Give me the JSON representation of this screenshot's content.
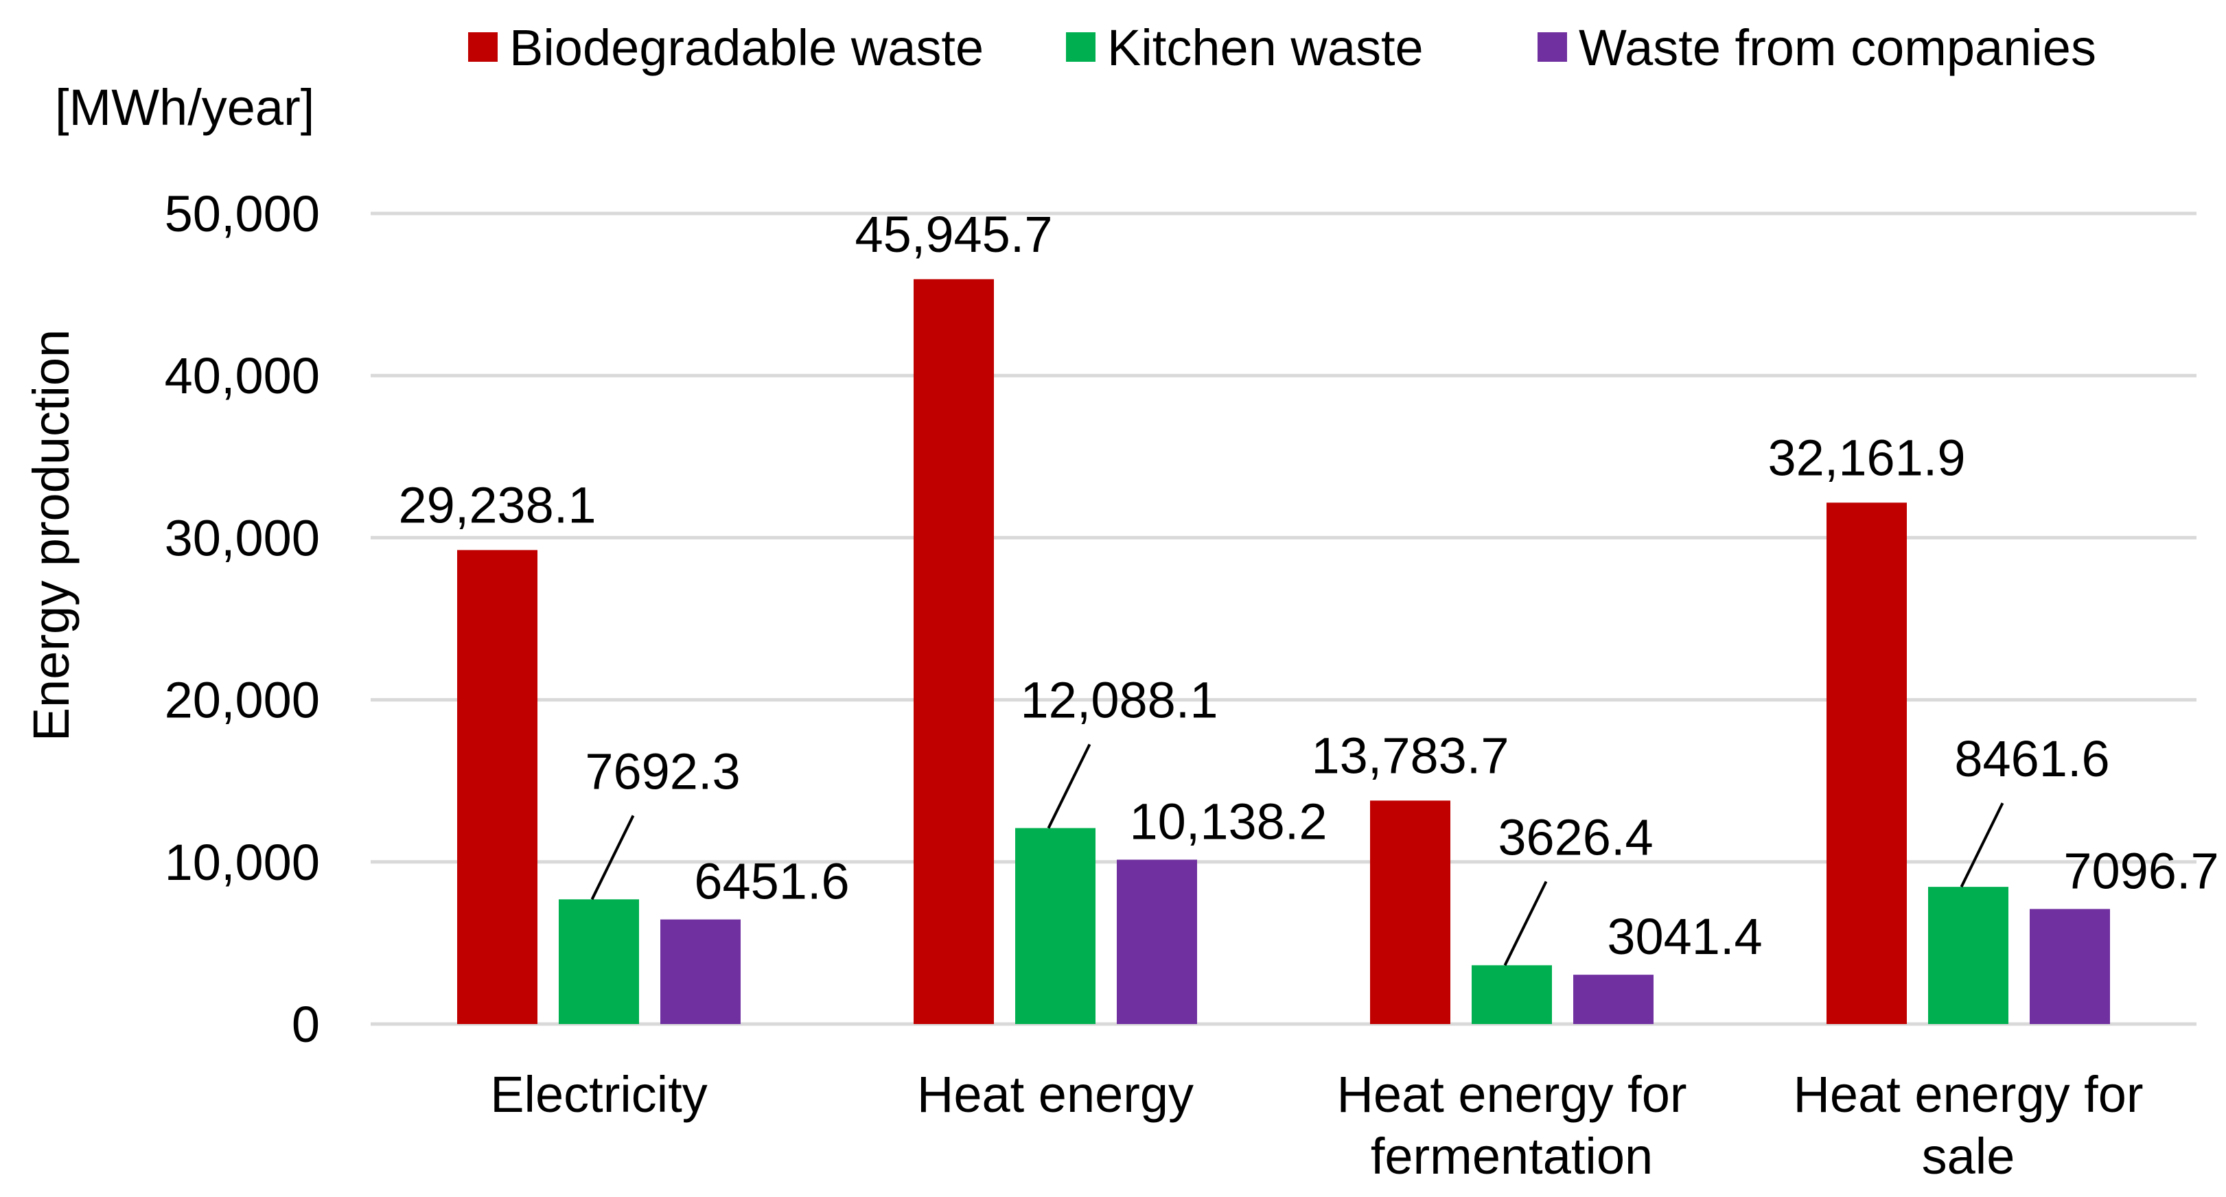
{
  "chart_data": {
    "type": "bar",
    "title": "",
    "unit_label": "[MWh/year]",
    "ylabel": "Energy production",
    "xlabel": "",
    "ylim": [
      0,
      50000
    ],
    "yticks": [
      0,
      10000,
      20000,
      30000,
      40000,
      50000
    ],
    "ytick_labels": [
      "0",
      "10,000",
      "20,000",
      "30,000",
      "40,000",
      "50,000"
    ],
    "grid": true,
    "legend_position": "top",
    "categories": [
      [
        "Electricity"
      ],
      [
        "Heat energy"
      ],
      [
        "Heat energy for",
        "fermentation"
      ],
      [
        "Heat energy for",
        "sale"
      ]
    ],
    "series": [
      {
        "name": "Biodegradable waste",
        "color": "#C00000",
        "values": [
          29238.1,
          45945.7,
          13783.7,
          32161.9
        ],
        "labels": [
          "29,238.1",
          "45,945.7",
          "13,783.7",
          "32,161.9"
        ]
      },
      {
        "name": "Kitchen waste",
        "color": "#00B050",
        "values": [
          7692.3,
          12088.1,
          3626.4,
          8461.6
        ],
        "labels": [
          "7692.3",
          "12,088.1",
          "3626.4",
          "8461.6"
        ]
      },
      {
        "name": "Waste from companies",
        "color": "#7030A0",
        "values": [
          6451.6,
          10138.2,
          3041.4,
          7096.7
        ],
        "labels": [
          "6451.6",
          "10,138.2",
          "3041.4",
          "7096.7"
        ]
      }
    ]
  }
}
